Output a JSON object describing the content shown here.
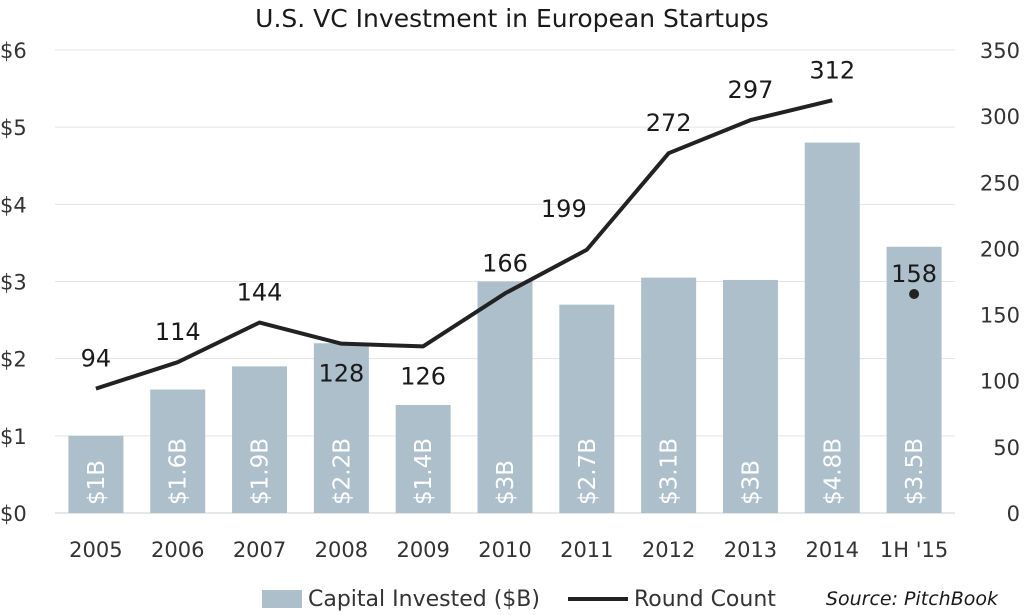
{
  "chart_data": {
    "type": "bar",
    "title": "U.S. VC Investment in European Startups",
    "categories": [
      "2005",
      "2006",
      "2007",
      "2008",
      "2009",
      "2010",
      "2011",
      "2012",
      "2013",
      "2014",
      "1H '15"
    ],
    "series": [
      {
        "name": "Capital Invested ($B)",
        "type": "bar",
        "axis": "left",
        "values": [
          1.0,
          1.6,
          1.9,
          2.2,
          1.4,
          3.0,
          2.7,
          3.05,
          3.02,
          4.8,
          3.45
        ],
        "labels": [
          "$1B",
          "$1.6B",
          "$1.9B",
          "$2.2B",
          "$1.4B",
          "$3B",
          "$2.7B",
          "$3.1B",
          "$3B",
          "$4.8B",
          "$3.5B"
        ],
        "color": "#acbfcb"
      },
      {
        "name": "Round Count",
        "type": "line",
        "axis": "right",
        "values": [
          94,
          114,
          144,
          128,
          126,
          166,
          199,
          272,
          297,
          312,
          null
        ],
        "color": "#222222"
      },
      {
        "name": "1H '15 round count",
        "type": "point",
        "axis": "right",
        "values": [
          null,
          null,
          null,
          null,
          null,
          null,
          null,
          null,
          null,
          null,
          158
        ],
        "color": "#222222"
      }
    ],
    "y_left": {
      "range": [
        0,
        6
      ],
      "ticks": [
        0,
        1,
        2,
        3,
        4,
        5,
        6
      ],
      "tick_labels": [
        "$0",
        "$1",
        "$2",
        "$3",
        "$4",
        "$5",
        "$6"
      ]
    },
    "y_right": {
      "range": [
        0,
        350
      ],
      "ticks": [
        0,
        50,
        100,
        150,
        200,
        250,
        300,
        350
      ],
      "tick_labels": [
        "0",
        "50",
        "100",
        "150",
        "200",
        "250",
        "300",
        "350"
      ]
    },
    "grid": true,
    "legend": {
      "position": "bottom",
      "items": [
        "Capital Invested ($B)",
        "Round Count"
      ]
    },
    "source": "Source: PitchBook"
  }
}
